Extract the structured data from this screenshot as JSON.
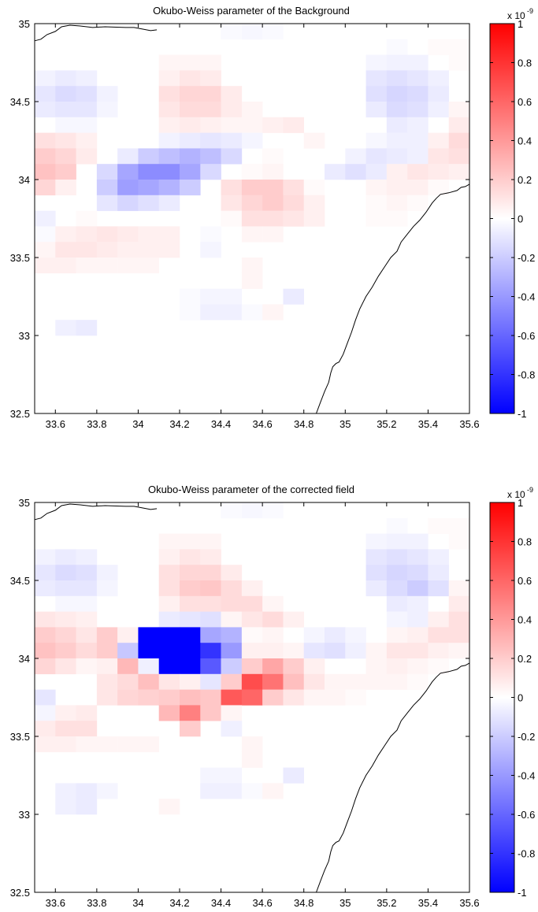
{
  "chart_data": [
    {
      "type": "heatmap",
      "title": "Okubo-Weiss parameter of the Background",
      "xlabel": "",
      "ylabel": "",
      "xlim": [
        33.5,
        35.6
      ],
      "ylim": [
        32.5,
        35.0
      ],
      "xticks": [
        "33.6",
        "33.8",
        "34",
        "34.2",
        "34.4",
        "34.6",
        "34.8",
        "35",
        "35.2",
        "35.4",
        "35.6"
      ],
      "yticks": [
        "32.5",
        "33",
        "33.5",
        "34",
        "34.5",
        "35"
      ],
      "colorbar": {
        "ticks": [
          "1",
          "0.8",
          "0.6",
          "0.4",
          "0.2",
          "0",
          "-0.2",
          "-0.4",
          "-0.6",
          "-0.8",
          "-1"
        ],
        "scale_base": "x 10",
        "scale_exponent": "-9",
        "clim": [
          -1,
          1
        ],
        "low_color": "#0000ff",
        "mid_color": "#ffffff",
        "high_color": "#ff0000"
      },
      "grid": {
        "lon_min": 33.5,
        "lat_max": 35.0,
        "cell_deg": 0.1,
        "values": [
          [
            0,
            0,
            0,
            0,
            0,
            0,
            0,
            0,
            0,
            -0.02,
            -0.03,
            -0.02,
            0,
            0,
            0,
            0,
            0,
            0,
            0,
            0,
            0
          ],
          [
            0,
            0,
            0,
            0,
            0,
            0,
            0,
            0,
            0,
            0,
            0,
            0,
            0,
            0,
            0,
            0,
            0,
            -0.02,
            0,
            0.02,
            0.02
          ],
          [
            0,
            0,
            0,
            0,
            0,
            0,
            0.04,
            0.04,
            0.04,
            0,
            0,
            0,
            0,
            0,
            0,
            0,
            -0.04,
            -0.05,
            -0.05,
            0,
            0.02
          ],
          [
            -0.05,
            -0.08,
            -0.06,
            0,
            0,
            0,
            0.06,
            0.1,
            0.08,
            0,
            0,
            0,
            0,
            0,
            0,
            0,
            -0.1,
            -0.12,
            -0.1,
            -0.06,
            0
          ],
          [
            -0.1,
            -0.14,
            -0.12,
            -0.05,
            0,
            0,
            0.12,
            0.16,
            0.16,
            0.08,
            0,
            0,
            0,
            0,
            0,
            0,
            -0.12,
            -0.16,
            -0.14,
            -0.08,
            0
          ],
          [
            -0.08,
            -0.1,
            -0.1,
            -0.04,
            0,
            0,
            0.1,
            0.14,
            0.14,
            0.08,
            0.04,
            0,
            0,
            0,
            0,
            0,
            -0.08,
            -0.14,
            -0.12,
            -0.06,
            0.04
          ],
          [
            0,
            -0.03,
            -0.03,
            0,
            0,
            0,
            0.06,
            0.08,
            0.06,
            0.04,
            0.04,
            0.06,
            0.08,
            0,
            0,
            0,
            0,
            -0.08,
            -0.06,
            0,
            0.08
          ],
          [
            0.12,
            0.1,
            0.06,
            0,
            0,
            0,
            -0.05,
            -0.08,
            -0.1,
            -0.08,
            -0.04,
            0,
            0,
            0.04,
            0,
            0,
            -0.03,
            -0.06,
            -0.06,
            0.06,
            0.14
          ],
          [
            0.2,
            0.16,
            0.08,
            0,
            -0.08,
            -0.2,
            -0.25,
            -0.3,
            -0.25,
            -0.15,
            0,
            0.02,
            0,
            0,
            0,
            -0.05,
            -0.1,
            -0.08,
            -0.06,
            0.1,
            0.12
          ],
          [
            0.24,
            0.2,
            0,
            -0.15,
            -0.35,
            -0.45,
            -0.45,
            -0.35,
            -0.15,
            0,
            0.02,
            0.04,
            0,
            0,
            -0.08,
            -0.12,
            -0.08,
            0.06,
            0.1,
            0.08,
            0.06
          ],
          [
            0.16,
            0.06,
            0,
            -0.2,
            -0.38,
            -0.35,
            -0.3,
            -0.2,
            0,
            0.12,
            0.2,
            0.2,
            0.12,
            0.02,
            0,
            0,
            0.04,
            0.06,
            0.06,
            0.02,
            0
          ],
          [
            0,
            0,
            0,
            -0.1,
            -0.16,
            -0.12,
            -0.08,
            0,
            0,
            0.1,
            0.16,
            0.2,
            0.14,
            0.06,
            0,
            0,
            0.02,
            0.04,
            0.02,
            0,
            0
          ],
          [
            -0.06,
            0,
            0.02,
            0,
            0,
            0,
            0,
            0,
            0,
            0.02,
            0.12,
            0.12,
            0.1,
            0.06,
            0,
            0,
            0.02,
            0.02,
            0,
            0,
            0
          ],
          [
            -0.02,
            0.06,
            0.08,
            0.1,
            0.08,
            0.06,
            0.06,
            0,
            -0.02,
            0,
            0.04,
            0.04,
            0,
            0,
            0,
            0,
            0,
            0,
            0,
            0,
            0
          ],
          [
            0.04,
            0.1,
            0.1,
            0.08,
            0.06,
            0.06,
            0.06,
            0,
            -0.04,
            0,
            0,
            0,
            0,
            0,
            0,
            0,
            0,
            0,
            0,
            0,
            0
          ],
          [
            0.06,
            0.06,
            0.04,
            0.04,
            0.04,
            0.04,
            0,
            0,
            0,
            0,
            0.04,
            0,
            0,
            0,
            0,
            0,
            0,
            0,
            0,
            0,
            0
          ],
          [
            0,
            0,
            0,
            0,
            0,
            0,
            0,
            0,
            0,
            0,
            0.04,
            0,
            0,
            0,
            0,
            0,
            0,
            0,
            0,
            0,
            0
          ],
          [
            0,
            0,
            0,
            0,
            0,
            0,
            0,
            -0.02,
            -0.04,
            -0.04,
            0,
            0,
            -0.08,
            0,
            0,
            0,
            0,
            0,
            0,
            0,
            0
          ],
          [
            0,
            0,
            0,
            0,
            0,
            0,
            0,
            -0.02,
            -0.06,
            -0.06,
            -0.02,
            0.04,
            0,
            0,
            0,
            0,
            0,
            0,
            0,
            0,
            0
          ],
          [
            0,
            -0.06,
            -0.08,
            0,
            0,
            0,
            0,
            0,
            0,
            0,
            0,
            0,
            0,
            0,
            0,
            0,
            0,
            0,
            0,
            0,
            0
          ],
          [
            0,
            0,
            0,
            0,
            0,
            0,
            0,
            0,
            0,
            0,
            0,
            0,
            0,
            0,
            0,
            0,
            0,
            0,
            0,
            0,
            0
          ]
        ]
      }
    },
    {
      "type": "heatmap",
      "title": "Okubo-Weiss parameter of the corrected field",
      "xlabel": "",
      "ylabel": "",
      "xlim": [
        33.5,
        35.6
      ],
      "ylim": [
        32.5,
        35.0
      ],
      "xticks": [
        "33.6",
        "33.8",
        "34",
        "34.2",
        "34.4",
        "34.6",
        "34.8",
        "35",
        "35.2",
        "35.4",
        "35.6"
      ],
      "yticks": [
        "32.5",
        "33",
        "33.5",
        "34",
        "34.5",
        "35"
      ],
      "colorbar": {
        "ticks": [
          "1",
          "0.8",
          "0.6",
          "0.4",
          "0.2",
          "0",
          "-0.2",
          "-0.4",
          "-0.6",
          "-0.8",
          "-1"
        ],
        "scale_base": "x 10",
        "scale_exponent": "-9",
        "clim": [
          -1,
          1
        ],
        "low_color": "#0000ff",
        "mid_color": "#ffffff",
        "high_color": "#ff0000"
      },
      "grid": {
        "lon_min": 33.5,
        "lat_max": 35.0,
        "cell_deg": 0.1,
        "values": [
          [
            0,
            0,
            0,
            0,
            0,
            0,
            0,
            0,
            0,
            -0.02,
            -0.03,
            -0.02,
            0,
            0,
            0,
            0,
            0,
            0,
            0,
            0,
            0
          ],
          [
            0,
            0,
            0,
            0,
            0,
            0,
            0,
            0,
            0,
            0,
            0,
            0,
            0,
            0,
            0,
            0,
            0,
            -0.02,
            0,
            0.02,
            0.02
          ],
          [
            0,
            0,
            0,
            0,
            0,
            0,
            0.04,
            0.04,
            0.04,
            0,
            0,
            0,
            0,
            0,
            0,
            0,
            -0.04,
            -0.05,
            -0.05,
            0,
            0.02
          ],
          [
            -0.05,
            -0.08,
            -0.06,
            0,
            0,
            0,
            0.06,
            0.1,
            0.08,
            0,
            0,
            0,
            0,
            0,
            0,
            0,
            -0.1,
            -0.12,
            -0.1,
            -0.06,
            0
          ],
          [
            -0.1,
            -0.14,
            -0.12,
            -0.05,
            0,
            0,
            0.12,
            0.16,
            0.16,
            0.08,
            0,
            0,
            0,
            0,
            0,
            0,
            -0.12,
            -0.16,
            -0.14,
            -0.08,
            0
          ],
          [
            -0.08,
            -0.1,
            -0.1,
            -0.04,
            0,
            0,
            0.12,
            0.2,
            0.22,
            0.14,
            0.06,
            0,
            0,
            0,
            0,
            0,
            -0.08,
            -0.14,
            -0.2,
            -0.12,
            0.04
          ],
          [
            0,
            -0.03,
            -0.03,
            0,
            0,
            0,
            0.06,
            0.12,
            0.12,
            0.14,
            0.14,
            0.04,
            0,
            0,
            0,
            0,
            0,
            -0.08,
            -0.06,
            0,
            0.08
          ],
          [
            0.1,
            0.08,
            0.06,
            0,
            0,
            0,
            -0.08,
            -0.1,
            -0.12,
            0.04,
            0.1,
            0.14,
            0.06,
            0,
            0,
            0,
            0,
            -0.04,
            -0.06,
            0.06,
            0.12
          ],
          [
            0.2,
            0.16,
            0.1,
            0.2,
            0.06,
            -1,
            -1,
            -1,
            -0.35,
            -0.3,
            0.02,
            0.04,
            0,
            -0.04,
            -0.08,
            -0.04,
            0,
            0.04,
            0.06,
            0.12,
            0.12
          ],
          [
            0.24,
            0.2,
            0.14,
            0.2,
            -0.22,
            -1,
            -1,
            -1,
            -0.8,
            -0.4,
            0.06,
            0.06,
            0.04,
            -0.1,
            -0.12,
            -0.06,
            0.04,
            0.1,
            0.1,
            0.06,
            0.04
          ],
          [
            0.16,
            0.1,
            0.04,
            0.06,
            0.28,
            -0.06,
            -1,
            -1,
            -0.65,
            -0.2,
            0.2,
            0.35,
            0.2,
            0.06,
            0,
            0,
            0.04,
            0.06,
            0.04,
            0.02,
            0
          ],
          [
            0,
            0,
            0,
            0.1,
            0.14,
            0.25,
            0.1,
            0.06,
            -0.1,
            0.2,
            0.7,
            0.55,
            0.25,
            0.1,
            0.04,
            0.04,
            0.04,
            0.04,
            0.02,
            0,
            0
          ],
          [
            -0.1,
            0,
            0,
            0.1,
            0.16,
            0.18,
            0.2,
            0.25,
            0.22,
            0.65,
            0.6,
            0.2,
            0.1,
            0.04,
            0.04,
            0.02,
            0,
            0,
            0,
            0,
            0
          ],
          [
            -0.04,
            0.06,
            0.08,
            0,
            0,
            0,
            0.28,
            0.5,
            0.22,
            0.04,
            0,
            0,
            0,
            0,
            0,
            0,
            0,
            0,
            0,
            0,
            0
          ],
          [
            0.08,
            0.12,
            0.12,
            0,
            0,
            0,
            0,
            0.2,
            0,
            -0.06,
            0,
            0,
            0,
            0,
            0,
            0,
            0,
            0,
            0,
            0,
            0
          ],
          [
            0.06,
            0.06,
            0.04,
            0.04,
            0.04,
            0.04,
            0,
            0,
            0,
            0,
            0.04,
            0,
            0,
            0,
            0,
            0,
            0,
            0,
            0,
            0,
            0
          ],
          [
            0,
            0,
            0,
            0,
            0,
            0,
            0,
            0,
            0,
            0,
            0.04,
            0,
            0,
            0,
            0,
            0,
            0,
            0,
            0,
            0,
            0
          ],
          [
            0,
            0,
            0,
            0,
            0,
            0,
            0,
            0,
            -0.04,
            -0.04,
            0,
            0,
            -0.08,
            0,
            0,
            0,
            0,
            0,
            0,
            0,
            0
          ],
          [
            0,
            -0.06,
            -0.08,
            -0.04,
            0,
            0,
            0,
            0,
            -0.06,
            -0.06,
            -0.02,
            0.04,
            0,
            0,
            0,
            0,
            0,
            0,
            0,
            0,
            0
          ],
          [
            0,
            -0.06,
            -0.08,
            0,
            0,
            0,
            0.04,
            0,
            0,
            0,
            0,
            0,
            0,
            0,
            0,
            0,
            0,
            0,
            0,
            0,
            0
          ],
          [
            0,
            0,
            0,
            0,
            0,
            0,
            0,
            0,
            0,
            0,
            0,
            0,
            0,
            0,
            0,
            0,
            0,
            0,
            0,
            0,
            0
          ]
        ]
      }
    }
  ]
}
